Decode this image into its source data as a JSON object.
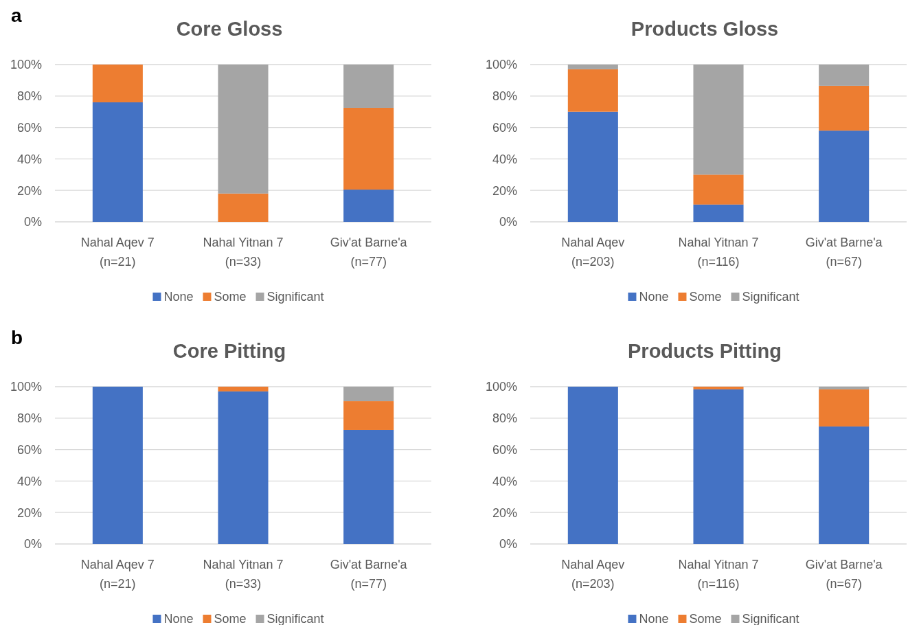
{
  "chart_data": [
    {
      "type": "bar",
      "stacked": true,
      "title": "Core Gloss",
      "annotations": [
        "a"
      ],
      "categories": [
        "Nahal Aqev 7\n(n=21)",
        "Nahal Yitnan 7\n(n=33)",
        "Giv'at Barne'a\n(n=77)"
      ],
      "ylim": [
        0,
        1
      ],
      "yticks": [
        {
          "value": 0,
          "label": "0%"
        },
        {
          "value": 0.2,
          "label": "20%"
        },
        {
          "value": 0.4,
          "label": "40%"
        },
        {
          "value": 0.6,
          "label": "60%"
        },
        {
          "value": 0.8,
          "label": "80%"
        },
        {
          "value": 1,
          "label": "100%"
        }
      ],
      "grid": "y",
      "legend": "bottom",
      "series": [
        {
          "name": "None",
          "color": "#4472c4",
          "values": [
            0.76,
            0,
            0.205
          ]
        },
        {
          "name": "Some",
          "color": "#ed7d31",
          "values": [
            0.24,
            0.18,
            0.52
          ]
        },
        {
          "name": "Significant",
          "color": "#a5a5a5",
          "values": [
            0,
            0.82,
            0.275
          ]
        }
      ]
    },
    {
      "type": "bar",
      "stacked": true,
      "title": "Products Gloss",
      "categories": [
        "Nahal Aqev\n(n=203)",
        "Nahal Yitnan 7\n(n=116)",
        "Giv'at Barne'a\n(n=67)"
      ],
      "ylim": [
        0,
        1
      ],
      "yticks": [
        {
          "value": 0,
          "label": "0%"
        },
        {
          "value": 0.2,
          "label": "20%"
        },
        {
          "value": 0.4,
          "label": "40%"
        },
        {
          "value": 0.6,
          "label": "60%"
        },
        {
          "value": 0.8,
          "label": "80%"
        },
        {
          "value": 1,
          "label": "100%"
        }
      ],
      "grid": "y",
      "legend": "bottom",
      "series": [
        {
          "name": "None",
          "color": "#4472c4",
          "values": [
            0.7,
            0.11,
            0.58
          ]
        },
        {
          "name": "Some",
          "color": "#ed7d31",
          "values": [
            0.27,
            0.19,
            0.285
          ]
        },
        {
          "name": "Significant",
          "color": "#a5a5a5",
          "values": [
            0.03,
            0.7,
            0.135
          ]
        }
      ]
    },
    {
      "type": "bar",
      "stacked": true,
      "title": "Core Pitting",
      "annotations": [
        "b"
      ],
      "categories": [
        "Nahal Aqev 7\n(n=21)",
        "Nahal Yitnan 7\n(n=33)",
        "Giv'at Barne'a\n(n=77)"
      ],
      "ylim": [
        0,
        1
      ],
      "yticks": [
        {
          "value": 0,
          "label": "0%"
        },
        {
          "value": 0.2,
          "label": "20%"
        },
        {
          "value": 0.4,
          "label": "40%"
        },
        {
          "value": 0.6,
          "label": "60%"
        },
        {
          "value": 0.8,
          "label": "80%"
        },
        {
          "value": 1,
          "label": "100%"
        }
      ],
      "grid": "y",
      "legend": "bottom",
      "series": [
        {
          "name": "None",
          "color": "#4472c4",
          "values": [
            1,
            0.97,
            0.725
          ]
        },
        {
          "name": "Some",
          "color": "#ed7d31",
          "values": [
            0,
            0.03,
            0.183
          ]
        },
        {
          "name": "Significant",
          "color": "#a5a5a5",
          "values": [
            0,
            0,
            0.092
          ]
        }
      ]
    },
    {
      "type": "bar",
      "stacked": true,
      "title": "Products Pitting",
      "categories": [
        "Nahal Aqev\n(n=203)",
        "Nahal Yitnan 7\n(n=116)",
        "Giv'at Barne'a\n(n=67)"
      ],
      "ylim": [
        0,
        1
      ],
      "yticks": [
        {
          "value": 0,
          "label": "0%"
        },
        {
          "value": 0.2,
          "label": "20%"
        },
        {
          "value": 0.4,
          "label": "40%"
        },
        {
          "value": 0.6,
          "label": "60%"
        },
        {
          "value": 0.8,
          "label": "80%"
        },
        {
          "value": 1,
          "label": "100%"
        }
      ],
      "grid": "y",
      "legend": "bottom",
      "series": [
        {
          "name": "None",
          "color": "#4472c4",
          "values": [
            1,
            0.983,
            0.747
          ]
        },
        {
          "name": "Some",
          "color": "#ed7d31",
          "values": [
            0,
            0.017,
            0.236
          ]
        },
        {
          "name": "Significant",
          "color": "#a5a5a5",
          "values": [
            0,
            0,
            0.017
          ]
        }
      ]
    }
  ]
}
